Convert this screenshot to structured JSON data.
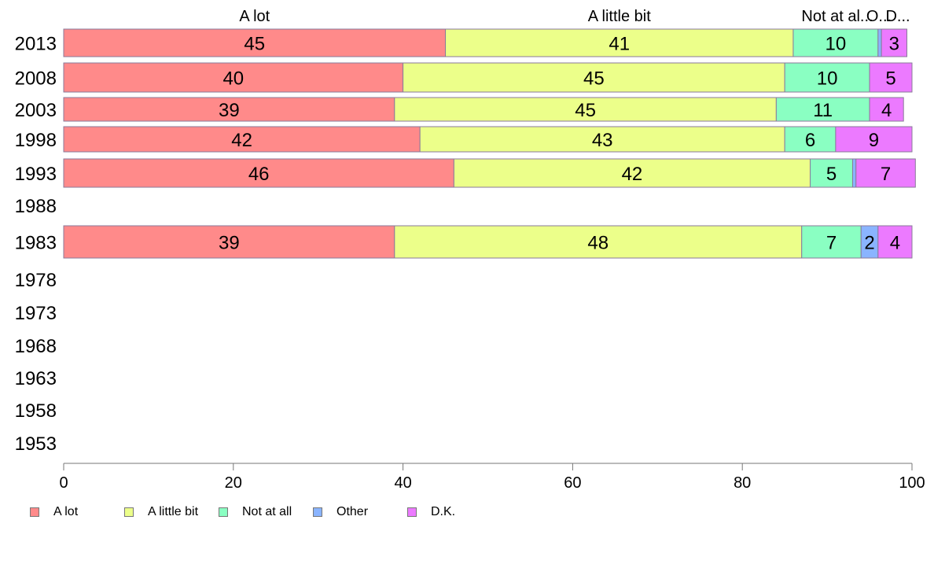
{
  "chart_data": {
    "type": "bar",
    "orientation": "horizontal",
    "stacked": true,
    "categories": [
      "2013",
      "2008",
      "2003",
      "1998",
      "1993",
      "1988",
      "1983",
      "1978",
      "1973",
      "1968",
      "1963",
      "1958",
      "1953"
    ],
    "series": [
      {
        "name": "A lot",
        "color": "#ff8a8a",
        "values": [
          45,
          40,
          39,
          42,
          46,
          null,
          39,
          null,
          null,
          null,
          null,
          null,
          null
        ]
      },
      {
        "name": "A little bit",
        "color": "#ecff8a",
        "values": [
          41,
          45,
          45,
          43,
          42,
          null,
          48,
          null,
          null,
          null,
          null,
          null,
          null
        ]
      },
      {
        "name": "Not at all",
        "color": "#8affc2",
        "values": [
          10,
          10,
          11,
          6,
          5,
          null,
          7,
          null,
          null,
          null,
          null,
          null,
          null
        ]
      },
      {
        "name": "Other",
        "color": "#8ab4ff",
        "values": [
          0.4,
          0,
          0,
          0,
          0.4,
          null,
          2,
          null,
          null,
          null,
          null,
          null,
          null
        ]
      },
      {
        "name": "D.K.",
        "color": "#ec7aff",
        "values": [
          3,
          5,
          4,
          9,
          7,
          null,
          4,
          null,
          null,
          null,
          null,
          null,
          null
        ]
      }
    ],
    "data_labels": [
      [
        "45",
        "41",
        "10",
        "",
        "3"
      ],
      [
        "40",
        "45",
        "10",
        "",
        "5"
      ],
      [
        "39",
        "45",
        "11",
        "",
        "4"
      ],
      [
        "42",
        "43",
        "6",
        "",
        "9"
      ],
      [
        "46",
        "42",
        "5",
        "",
        "7"
      ],
      [
        "",
        "",
        "",
        "",
        ""
      ],
      [
        "39",
        "48",
        "7",
        "2",
        "4"
      ],
      [
        "",
        "",
        "",
        "",
        ""
      ],
      [
        "",
        "",
        "",
        "",
        ""
      ],
      [
        "",
        "",
        "",
        "",
        ""
      ],
      [
        "",
        "",
        "",
        "",
        ""
      ],
      [
        "",
        "",
        "",
        "",
        ""
      ],
      [
        "",
        "",
        "",
        "",
        ""
      ]
    ],
    "top_labels": [
      "A lot",
      "A little bit",
      "Not at al...",
      "O...",
      "D..."
    ],
    "xlim": [
      0,
      100
    ],
    "xticks": [
      "0",
      "20",
      "40",
      "60",
      "80",
      "100"
    ],
    "xlabel": "",
    "ylabel": "",
    "title": "",
    "grid": false,
    "legend_position": "bottom-left"
  }
}
